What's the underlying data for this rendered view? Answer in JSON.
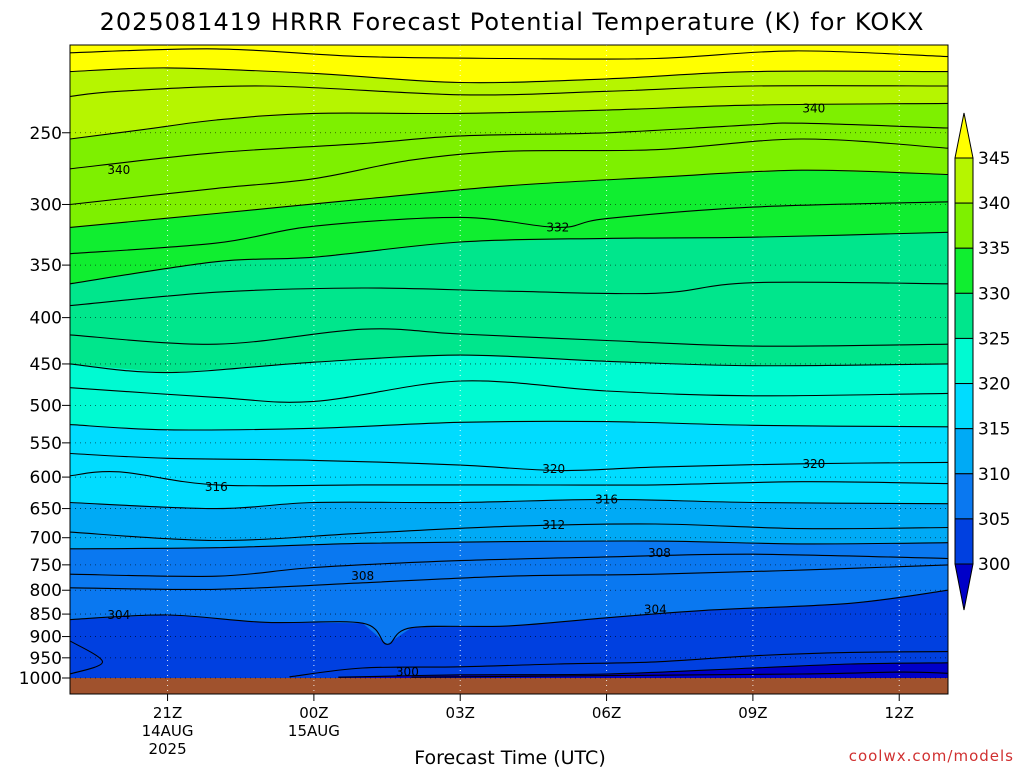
{
  "chart_data": {
    "type": "heatmap",
    "title": "2025081419 HRRR Forecast Potential Temperature (K) for KOKX",
    "xlabel": "Forecast Time (UTC)",
    "ylabel": "",
    "credit": "coolwx.com/models",
    "y_axis": {
      "scale": "log",
      "inverted": true,
      "range_hpa": [
        1000,
        200
      ],
      "ticks": [
        "250",
        "300",
        "350",
        "400",
        "450",
        "500",
        "550",
        "600",
        "650",
        "700",
        "750",
        "800",
        "850",
        "900",
        "950",
        "1000"
      ],
      "grid": "dotted"
    },
    "x_axis": {
      "range": [
        "2025-08-14T19:00Z",
        "2025-08-15T13:00Z"
      ],
      "ticks": [
        {
          "label": "21Z",
          "sub1": "14AUG",
          "sub2": "2025",
          "time": "2025-08-14T21:00Z"
        },
        {
          "label": "00Z",
          "sub1": "15AUG",
          "sub2": "",
          "time": "2025-08-15T00:00Z"
        },
        {
          "label": "03Z",
          "sub1": "",
          "sub2": "",
          "time": "2025-08-15T03:00Z"
        },
        {
          "label": "06Z",
          "sub1": "",
          "sub2": "",
          "time": "2025-08-15T06:00Z"
        },
        {
          "label": "09Z",
          "sub1": "",
          "sub2": "",
          "time": "2025-08-15T09:00Z"
        },
        {
          "label": "12Z",
          "sub1": "",
          "sub2": "",
          "time": "2025-08-15T12:00Z"
        }
      ],
      "grid": "dotted"
    },
    "colorbar": {
      "labels": [
        "345",
        "340",
        "335",
        "330",
        "325",
        "320",
        "315",
        "310",
        "305",
        "300"
      ],
      "levels": [
        300,
        305,
        310,
        315,
        320,
        325,
        330,
        335,
        340,
        345
      ],
      "colors": [
        "#0000c8",
        "#0040e0",
        "#0a78f0",
        "#00aaf5",
        "#00dcff",
        "#00fad2",
        "#00e68c",
        "#10ee30",
        "#7ef000",
        "#b6f500",
        "#ffff00"
      ],
      "extend": "both"
    },
    "ground_color": "#a0522d",
    "contour_interval_k": 2,
    "contour_labels": [
      {
        "text": "340",
        "time": "2025-08-15T10:15Z",
        "p": 235
      },
      {
        "text": "340",
        "time": "2025-08-14T20:00Z",
        "p": 275
      },
      {
        "text": "332",
        "time": "2025-08-15T05:00Z",
        "p": 318
      },
      {
        "text": "320",
        "time": "2025-08-15T04:55Z",
        "p": 588
      },
      {
        "text": "320",
        "time": "2025-08-15T10:15Z",
        "p": 580
      },
      {
        "text": "316",
        "time": "2025-08-14T22:00Z",
        "p": 615
      },
      {
        "text": "316",
        "time": "2025-08-15T06:00Z",
        "p": 635
      },
      {
        "text": "312",
        "time": "2025-08-15T04:55Z",
        "p": 678
      },
      {
        "text": "308",
        "time": "2025-08-15T07:05Z",
        "p": 728
      },
      {
        "text": "308",
        "time": "2025-08-15T01:00Z",
        "p": 772
      },
      {
        "text": "304",
        "time": "2025-08-14T20:00Z",
        "p": 852
      },
      {
        "text": "304",
        "time": "2025-08-15T07:00Z",
        "p": 840
      },
      {
        "text": "300",
        "time": "2025-08-15T01:55Z",
        "p": 985
      }
    ],
    "isentropes": [
      {
        "theta": 346,
        "points": [
          [
            "2025-08-14T19:00Z",
            204
          ],
          [
            "2025-08-14T22:00Z",
            202
          ],
          [
            "2025-08-15T01:00Z",
            206
          ],
          [
            "2025-08-15T04:00Z",
            207
          ],
          [
            "2025-08-15T07:00Z",
            207
          ],
          [
            "2025-08-15T09:50Z",
            203
          ],
          [
            "2025-08-15T13:00Z",
            206
          ]
        ]
      },
      {
        "theta": 344,
        "points": [
          [
            "2025-08-14T19:00Z",
            214
          ],
          [
            "2025-08-14T21:00Z",
            212
          ],
          [
            "2025-08-15T00:00Z",
            215
          ],
          [
            "2025-08-15T03:00Z",
            220
          ],
          [
            "2025-08-15T06:00Z",
            218
          ],
          [
            "2025-08-15T09:00Z",
            214
          ],
          [
            "2025-08-15T13:00Z",
            214
          ]
        ]
      },
      {
        "theta": 342,
        "points": [
          [
            "2025-08-14T19:00Z",
            228
          ],
          [
            "2025-08-14T20:00Z",
            225
          ],
          [
            "2025-08-14T23:00Z",
            222
          ],
          [
            "2025-08-15T03:00Z",
            227
          ],
          [
            "2025-08-15T06:00Z",
            225
          ],
          [
            "2025-08-15T09:00Z",
            222
          ],
          [
            "2025-08-15T13:00Z",
            222
          ]
        ]
      },
      {
        "theta": 340,
        "points": [
          [
            "2025-08-14T19:00Z",
            254
          ],
          [
            "2025-08-14T20:30Z",
            248
          ],
          [
            "2025-08-14T22:00Z",
            242
          ],
          [
            "2025-08-15T00:00Z",
            238
          ],
          [
            "2025-08-15T03:00Z",
            238
          ],
          [
            "2025-08-15T06:00Z",
            236
          ],
          [
            "2025-08-15T09:00Z",
            233
          ],
          [
            "2025-08-15T13:00Z",
            232
          ]
        ]
      },
      {
        "theta": 338,
        "points": [
          [
            "2025-08-14T19:00Z",
            274
          ],
          [
            "2025-08-14T22:00Z",
            263
          ],
          [
            "2025-08-15T01:00Z",
            257
          ],
          [
            "2025-08-15T03:00Z",
            252
          ],
          [
            "2025-08-15T06:00Z",
            250
          ],
          [
            "2025-08-15T09:00Z",
            245
          ],
          [
            "2025-08-15T10:00Z",
            244
          ],
          [
            "2025-08-15T13:00Z",
            247
          ]
        ]
      },
      {
        "theta": 336,
        "points": [
          [
            "2025-08-14T19:00Z",
            300
          ],
          [
            "2025-08-14T22:00Z",
            288
          ],
          [
            "2025-08-15T00:00Z",
            281
          ],
          [
            "2025-08-15T02:00Z",
            268
          ],
          [
            "2025-08-15T04:00Z",
            262
          ],
          [
            "2025-08-15T07:00Z",
            261
          ],
          [
            "2025-08-15T10:00Z",
            254
          ],
          [
            "2025-08-15T13:00Z",
            260
          ]
        ]
      },
      {
        "theta": 334,
        "points": [
          [
            "2025-08-14T19:00Z",
            318
          ],
          [
            "2025-08-14T22:00Z",
            307
          ],
          [
            "2025-08-15T01:00Z",
            296
          ],
          [
            "2025-08-15T04:00Z",
            286
          ],
          [
            "2025-08-15T07:00Z",
            280
          ],
          [
            "2025-08-15T10:00Z",
            275
          ],
          [
            "2025-08-15T13:00Z",
            278
          ]
        ]
      },
      {
        "theta": 332,
        "points": [
          [
            "2025-08-14T19:00Z",
            340
          ],
          [
            "2025-08-14T22:00Z",
            331
          ],
          [
            "2025-08-15T00:00Z",
            317
          ],
          [
            "2025-08-15T03:00Z",
            310
          ],
          [
            "2025-08-15T05:00Z",
            318
          ],
          [
            "2025-08-15T06:00Z",
            311
          ],
          [
            "2025-08-15T09:00Z",
            302
          ],
          [
            "2025-08-15T13:00Z",
            298
          ]
        ]
      },
      {
        "theta": 330,
        "points": [
          [
            "2025-08-14T19:00Z",
            367
          ],
          [
            "2025-08-14T22:00Z",
            347
          ],
          [
            "2025-08-15T00:00Z",
            343
          ],
          [
            "2025-08-15T03:00Z",
            330
          ],
          [
            "2025-08-15T06:00Z",
            327
          ],
          [
            "2025-08-15T09:00Z",
            326
          ],
          [
            "2025-08-15T13:00Z",
            322
          ]
        ]
      },
      {
        "theta": 328,
        "points": [
          [
            "2025-08-14T19:00Z",
            388
          ],
          [
            "2025-08-14T22:00Z",
            375
          ],
          [
            "2025-08-15T01:00Z",
            371
          ],
          [
            "2025-08-15T04:00Z",
            374
          ],
          [
            "2025-08-15T07:00Z",
            376
          ],
          [
            "2025-08-15T09:00Z",
            366
          ],
          [
            "2025-08-15T13:00Z",
            367
          ]
        ]
      },
      {
        "theta": 326,
        "points": [
          [
            "2025-08-14T19:00Z",
            418
          ],
          [
            "2025-08-14T22:00Z",
            428
          ],
          [
            "2025-08-15T01:00Z",
            412
          ],
          [
            "2025-08-15T03:00Z",
            417
          ],
          [
            "2025-08-15T06:00Z",
            424
          ],
          [
            "2025-08-15T09:00Z",
            430
          ],
          [
            "2025-08-15T13:00Z",
            428
          ]
        ]
      },
      {
        "theta": 324,
        "points": [
          [
            "2025-08-14T19:00Z",
            450
          ],
          [
            "2025-08-14T21:00Z",
            460
          ],
          [
            "2025-08-15T00:00Z",
            448
          ],
          [
            "2025-08-15T03:00Z",
            440
          ],
          [
            "2025-08-15T06:00Z",
            447
          ],
          [
            "2025-08-15T09:00Z",
            452
          ],
          [
            "2025-08-15T13:00Z",
            450
          ]
        ]
      },
      {
        "theta": 322,
        "points": [
          [
            "2025-08-14T19:00Z",
            478
          ],
          [
            "2025-08-14T22:00Z",
            490
          ],
          [
            "2025-08-15T00:00Z",
            495
          ],
          [
            "2025-08-15T03:00Z",
            470
          ],
          [
            "2025-08-15T06:00Z",
            482
          ],
          [
            "2025-08-15T09:00Z",
            488
          ],
          [
            "2025-08-15T13:00Z",
            485
          ]
        ]
      },
      {
        "theta": 320,
        "points": [
          [
            "2025-08-14T19:00Z",
            525
          ],
          [
            "2025-08-14T21:00Z",
            532
          ],
          [
            "2025-08-15T00:00Z",
            530
          ],
          [
            "2025-08-15T03:00Z",
            522
          ],
          [
            "2025-08-15T06:00Z",
            521
          ],
          [
            "2025-08-15T09:00Z",
            526
          ],
          [
            "2025-08-15T13:00Z",
            528
          ]
        ]
      },
      {
        "theta": 318,
        "points": [
          [
            "2025-08-14T19:00Z",
            565
          ],
          [
            "2025-08-14T21:00Z",
            572
          ],
          [
            "2025-08-15T00:00Z",
            575
          ],
          [
            "2025-08-15T03:00Z",
            582
          ],
          [
            "2025-08-15T05:00Z",
            590
          ],
          [
            "2025-08-15T07:00Z",
            585
          ],
          [
            "2025-08-15T10:00Z",
            580
          ],
          [
            "2025-08-15T13:00Z",
            578
          ]
        ]
      },
      {
        "theta": 316,
        "points": [
          [
            "2025-08-14T19:00Z",
            598
          ],
          [
            "2025-08-14T20:00Z",
            592
          ],
          [
            "2025-08-14T22:00Z",
            612
          ],
          [
            "2025-08-15T01:00Z",
            612
          ],
          [
            "2025-08-15T04:00Z",
            612
          ],
          [
            "2025-08-15T07:00Z",
            612
          ],
          [
            "2025-08-15T10:00Z",
            607
          ],
          [
            "2025-08-15T13:00Z",
            610
          ]
        ]
      },
      {
        "theta": 314,
        "points": [
          [
            "2025-08-14T19:00Z",
            640
          ],
          [
            "2025-08-14T22:00Z",
            650
          ],
          [
            "2025-08-15T00:00Z",
            640
          ],
          [
            "2025-08-15T03:00Z",
            640
          ],
          [
            "2025-08-15T06:00Z",
            635
          ],
          [
            "2025-08-15T09:00Z",
            640
          ],
          [
            "2025-08-15T13:00Z",
            642
          ]
        ]
      },
      {
        "theta": 312,
        "points": [
          [
            "2025-08-14T19:00Z",
            690
          ],
          [
            "2025-08-14T22:00Z",
            705
          ],
          [
            "2025-08-15T01:00Z",
            692
          ],
          [
            "2025-08-15T04:00Z",
            680
          ],
          [
            "2025-08-15T07:00Z",
            676
          ],
          [
            "2025-08-15T10:00Z",
            684
          ],
          [
            "2025-08-15T13:00Z",
            682
          ]
        ]
      },
      {
        "theta": 310,
        "points": [
          [
            "2025-08-14T19:00Z",
            720
          ],
          [
            "2025-08-14T22:00Z",
            718
          ],
          [
            "2025-08-15T01:00Z",
            710
          ],
          [
            "2025-08-15T04:00Z",
            707
          ],
          [
            "2025-08-15T07:00Z",
            706
          ],
          [
            "2025-08-15T10:00Z",
            711
          ],
          [
            "2025-08-15T13:00Z",
            709
          ]
        ]
      },
      {
        "theta": 308,
        "points": [
          [
            "2025-08-14T19:00Z",
            768
          ],
          [
            "2025-08-14T22:00Z",
            772
          ],
          [
            "2025-08-15T00:00Z",
            755
          ],
          [
            "2025-08-15T03:00Z",
            742
          ],
          [
            "2025-08-15T06:00Z",
            735
          ],
          [
            "2025-08-15T09:00Z",
            730
          ],
          [
            "2025-08-15T13:00Z",
            738
          ]
        ]
      },
      {
        "theta": 306,
        "points": [
          [
            "2025-08-14T19:00Z",
            795
          ],
          [
            "2025-08-14T22:00Z",
            798
          ],
          [
            "2025-08-15T01:00Z",
            785
          ],
          [
            "2025-08-15T04:00Z",
            772
          ],
          [
            "2025-08-15T07:00Z",
            768
          ],
          [
            "2025-08-15T10:00Z",
            760
          ],
          [
            "2025-08-15T13:00Z",
            750
          ]
        ]
      },
      {
        "theta": 304,
        "points": [
          [
            "2025-08-14T19:00Z",
            862
          ],
          [
            "2025-08-14T21:00Z",
            852
          ],
          [
            "2025-08-14T23:00Z",
            868
          ],
          [
            "2025-08-15T01:00Z",
            870
          ],
          [
            "2025-08-15T01:30Z",
            918
          ],
          [
            "2025-08-15T02:00Z",
            880
          ],
          [
            "2025-08-15T04:00Z",
            876
          ],
          [
            "2025-08-15T06:00Z",
            858
          ],
          [
            "2025-08-15T08:00Z",
            842
          ],
          [
            "2025-08-15T11:00Z",
            827
          ],
          [
            "2025-08-15T13:00Z",
            800
          ]
        ]
      },
      {
        "theta": 302,
        "points": [
          [
            "2025-08-14T19:00Z",
            910
          ],
          [
            "2025-08-14T19:40Z",
            960
          ],
          [
            "2025-08-14T19:00Z",
            990
          ]
        ]
      },
      {
        "theta": 302,
        "points": [
          [
            "2025-08-14T23:30Z",
            997
          ],
          [
            "2025-08-15T01:00Z",
            975
          ],
          [
            "2025-08-15T03:00Z",
            972
          ],
          [
            "2025-08-15T05:00Z",
            965
          ],
          [
            "2025-08-15T07:00Z",
            960
          ],
          [
            "2025-08-15T09:00Z",
            945
          ],
          [
            "2025-08-15T11:00Z",
            937
          ],
          [
            "2025-08-15T13:00Z",
            935
          ]
        ]
      },
      {
        "theta": 300,
        "points": [
          [
            "2025-08-15T00:30Z",
            998
          ],
          [
            "2025-08-15T03:00Z",
            992
          ],
          [
            "2025-08-15T06:00Z",
            990
          ],
          [
            "2025-08-15T09:00Z",
            975
          ],
          [
            "2025-08-15T11:00Z",
            965
          ],
          [
            "2025-08-15T13:00Z",
            962
          ]
        ]
      },
      {
        "theta": 298,
        "points": [
          [
            "2025-08-15T02:00Z",
            998
          ],
          [
            "2025-08-15T06:00Z",
            994
          ],
          [
            "2025-08-15T10:00Z",
            990
          ],
          [
            "2025-08-15T12:00Z",
            985
          ],
          [
            "2025-08-15T13:00Z",
            988
          ]
        ]
      }
    ]
  }
}
